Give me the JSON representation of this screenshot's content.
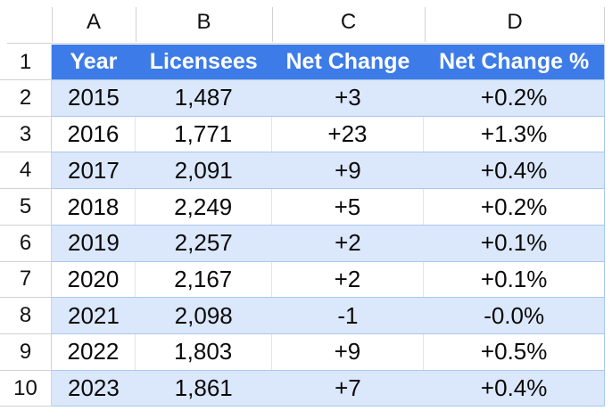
{
  "sheet": {
    "column_letters": [
      "A",
      "B",
      "C",
      "D"
    ],
    "row_numbers": [
      "1",
      "2",
      "3",
      "4",
      "5",
      "6",
      "7",
      "8",
      "9",
      "10"
    ],
    "header_row": {
      "year": "Year",
      "licensees": "Licensees",
      "net_change": "Net Change",
      "net_change_pct": "Net Change %"
    },
    "rows": [
      {
        "year": "2015",
        "licensees": "1,487",
        "net_change": "+3",
        "net_change_pct": "+0.2%"
      },
      {
        "year": "2016",
        "licensees": "1,771",
        "net_change": "+23",
        "net_change_pct": "+1.3%"
      },
      {
        "year": "2017",
        "licensees": "2,091",
        "net_change": "+9",
        "net_change_pct": "+0.4%"
      },
      {
        "year": "2018",
        "licensees": "2,249",
        "net_change": "+5",
        "net_change_pct": "+0.2%"
      },
      {
        "year": "2019",
        "licensees": "2,257",
        "net_change": "+2",
        "net_change_pct": "+0.1%"
      },
      {
        "year": "2020",
        "licensees": "2,167",
        "net_change": "+2",
        "net_change_pct": "+0.1%"
      },
      {
        "year": "2021",
        "licensees": "2,098",
        "net_change": "-1",
        "net_change_pct": "-0.0%"
      },
      {
        "year": "2022",
        "licensees": "1,803",
        "net_change": "+9",
        "net_change_pct": "+0.5%"
      },
      {
        "year": "2023",
        "licensees": "1,861",
        "net_change": "+7",
        "net_change_pct": "+0.4%"
      }
    ],
    "colors": {
      "header_bg": "#3D7CE8",
      "header_text": "#FFFFFF",
      "band_bg": "#DBE7FA",
      "row_border": "#A9C7EF",
      "grid_gray": "#D2D2D2",
      "cell_divider": "#E4E4E4",
      "text": "#0A0A0A"
    }
  }
}
